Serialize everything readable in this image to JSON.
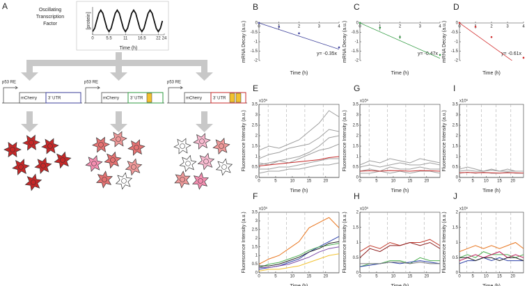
{
  "panel_a": {
    "label": "A",
    "factor_label": [
      "Oscillating",
      "Transcription",
      "Factor"
    ],
    "constructs": [
      {
        "promoter": "p53 RE",
        "reporter": "mCherry",
        "utr": "3’ UTR",
        "utr_color": "#3b3f9a",
        "elements": 0
      },
      {
        "promoter": "p53 RE",
        "reporter": "mCherry",
        "utr": "3’ UTR",
        "utr_color": "#2e9a3f",
        "elements": 1
      },
      {
        "promoter": "p53 RE",
        "reporter": "mCherry",
        "utr": "3’ UTR",
        "utr_color": "#c62828",
        "elements": 2
      }
    ]
  },
  "chart_data": [
    {
      "type": "line",
      "ylabel": "[protein]",
      "xlabel": "Time (h)",
      "xlim": [
        0,
        24
      ],
      "ylim": [
        -0.15,
        1.15
      ],
      "xticks": [
        0,
        5.5,
        11,
        16.5,
        22,
        24
      ],
      "x": [
        0,
        0.6875,
        1.375,
        2.0625,
        2.75,
        3.4375,
        4.125,
        4.8125,
        5.5,
        6.1875,
        6.875,
        7.5625,
        8.25,
        8.9375,
        9.625,
        10.3125,
        11,
        11.6875,
        12.375,
        13.0625,
        13.75,
        14.4375,
        15.125,
        15.8125,
        16.5,
        17.1875,
        17.875,
        18.5625,
        19.25,
        19.9375,
        20.625,
        21.3125,
        22,
        22.6875,
        23.375
      ],
      "series": [
        {
          "color": "#111111",
          "values": [
            0,
            0.15,
            0.5,
            0.85,
            1,
            0.85,
            0.5,
            0.15,
            0,
            0.15,
            0.5,
            0.85,
            1,
            0.85,
            0.5,
            0.15,
            0,
            0.15,
            0.5,
            0.85,
            1,
            0.85,
            0.5,
            0.15,
            0,
            0.15,
            0.5,
            0.85,
            1,
            0.85,
            0.5,
            0.15,
            0,
            0.15,
            0.5
          ]
        }
      ]
    },
    {
      "type": "scatter",
      "label": "B",
      "ylabel": "mRNA Decay (a.u.)",
      "xlabel": "Time (h)",
      "annotation": "y= -0.35x",
      "xlim": [
        0,
        4
      ],
      "ylim": [
        -2,
        0
      ],
      "xticks": [
        0,
        1,
        2,
        3,
        4
      ],
      "yticks": [
        0,
        -0.5,
        -1,
        -1.5,
        -2
      ],
      "x": [
        0,
        1,
        2,
        4
      ],
      "values": [
        0,
        -0.2,
        -0.55,
        -1.3
      ],
      "errors": [
        0,
        0.15,
        0.05,
        0.03
      ],
      "color": "#3b3f9a",
      "fit_slope": -0.35
    },
    {
      "type": "scatter",
      "label": "C",
      "ylabel": "mRNA Decay (a.u.)",
      "xlabel": "Time (h)",
      "annotation": "y= -0.47x",
      "xlim": [
        0,
        4
      ],
      "ylim": [
        -2,
        0
      ],
      "xticks": [
        0,
        1,
        2,
        3,
        4
      ],
      "yticks": [
        0,
        -0.5,
        -1,
        -1.5,
        -2
      ],
      "x": [
        0,
        1,
        2,
        4
      ],
      "values": [
        0,
        -0.25,
        -0.75,
        -1.7
      ],
      "errors": [
        0,
        0.15,
        0.1,
        0.05
      ],
      "color": "#2e9a3f",
      "fit_slope": -0.47
    },
    {
      "type": "scatter",
      "label": "D",
      "ylabel": "mRNA Decay (a.u.)",
      "xlabel": "Time (h)",
      "annotation": "y= -0.61x",
      "xlim": [
        0,
        4
      ],
      "ylim": [
        -2,
        0
      ],
      "xticks": [
        0,
        1,
        2,
        3,
        4
      ],
      "yticks": [
        0,
        -0.5,
        -1,
        -1.5,
        -2
      ],
      "x": [
        0,
        1,
        2,
        4
      ],
      "values": [
        0,
        -0.2,
        -0.75,
        -1.85
      ],
      "errors": [
        0,
        0.1,
        0.05,
        0.05
      ],
      "color": "#d32f2f",
      "fit_slope": -0.61
    },
    {
      "type": "line",
      "label": "E",
      "ylabel": "Fluorescence Intensity (a.u.)",
      "xlabel": "Time (h)",
      "y_exponent": "x10⁵",
      "xlim": [
        0,
        24
      ],
      "ylim": [
        0,
        3.5
      ],
      "xticks": [
        0,
        5,
        10,
        15,
        20
      ],
      "yticks": [
        0,
        0.5,
        1,
        1.5,
        2,
        2.5,
        3,
        3.5
      ],
      "period_lines": [
        2.75,
        8.25,
        13.75,
        19.25
      ],
      "x": [
        0,
        3,
        6,
        9,
        12,
        15,
        18,
        21,
        24
      ],
      "series": [
        {
          "color": "#9e9e9e",
          "values": [
            0.6,
            0.7,
            0.8,
            0.9,
            1.0,
            1.2,
            1.5,
            1.9,
            2.0
          ]
        },
        {
          "color": "#9e9e9e",
          "values": [
            0.9,
            1.1,
            1.2,
            1.4,
            1.5,
            1.6,
            1.9,
            2.3,
            2.2
          ]
        },
        {
          "color": "#9e9e9e",
          "values": [
            0.4,
            0.4,
            0.5,
            0.5,
            0.6,
            0.7,
            0.8,
            0.9,
            0.9
          ]
        },
        {
          "color": "#9e9e9e",
          "values": [
            1.3,
            1.5,
            1.4,
            1.6,
            1.8,
            2.2,
            2.6,
            3.2,
            2.9
          ]
        },
        {
          "color": "#9e9e9e",
          "values": [
            0.2,
            0.3,
            0.3,
            0.4,
            0.4,
            0.5,
            0.6,
            0.6,
            0.7
          ]
        },
        {
          "color": "#9e9e9e",
          "values": [
            0.7,
            0.6,
            0.8,
            0.7,
            0.9,
            1.1,
            1.3,
            1.4,
            1.6
          ]
        },
        {
          "color": "#c62828",
          "values": [
            0.55,
            0.6,
            0.65,
            0.7,
            0.75,
            0.8,
            0.85,
            0.95,
            1.0
          ]
        }
      ]
    },
    {
      "type": "line",
      "label": "F",
      "ylabel": "Fluorescence Intensity (a.u.)",
      "xlabel": "Time (h)",
      "y_exponent": "x10⁵",
      "xlim": [
        0,
        24
      ],
      "ylim": [
        0,
        3.5
      ],
      "xticks": [
        0,
        5,
        10,
        15,
        20
      ],
      "yticks": [
        0,
        0.5,
        1,
        1.5,
        2,
        2.5,
        3,
        3.5
      ],
      "period_lines": [
        2.75,
        8.25,
        13.75,
        19.25
      ],
      "x": [
        0,
        3,
        6,
        9,
        12,
        15,
        18,
        21,
        24
      ],
      "series": [
        {
          "color": "#e8741c",
          "values": [
            0.5,
            0.8,
            1.0,
            1.4,
            1.8,
            2.6,
            2.9,
            3.2,
            2.6
          ]
        },
        {
          "color": "#2a3ea8",
          "values": [
            0.2,
            0.3,
            0.4,
            0.6,
            0.8,
            1.2,
            1.5,
            1.8,
            2.1
          ]
        },
        {
          "color": "#4caf50",
          "values": [
            0.3,
            0.5,
            0.6,
            0.8,
            1.0,
            1.3,
            1.5,
            1.6,
            1.7
          ]
        },
        {
          "color": "#222222",
          "values": [
            0.4,
            0.4,
            0.5,
            0.7,
            0.9,
            1.2,
            1.4,
            1.7,
            1.8
          ]
        },
        {
          "color": "#f2c12e",
          "values": [
            0.1,
            0.2,
            0.2,
            0.3,
            0.4,
            0.6,
            0.8,
            1.0,
            1.1
          ]
        },
        {
          "color": "#7b4aa6",
          "values": [
            0.3,
            0.3,
            0.4,
            0.5,
            0.7,
            0.9,
            1.2,
            1.4,
            1.5
          ]
        }
      ]
    },
    {
      "type": "line",
      "label": "G",
      "ylabel": "Fluorescence Intensity (a.u.)",
      "xlabel": "Time (h)",
      "y_exponent": "x10⁵",
      "xlim": [
        0,
        24
      ],
      "ylim": [
        0,
        3.5
      ],
      "xticks": [
        0,
        5,
        10,
        15,
        20
      ],
      "yticks": [
        0,
        0.5,
        1,
        1.5,
        2,
        2.5,
        3,
        3.5
      ],
      "period_lines": [
        2.75,
        8.25,
        13.75,
        19.25
      ],
      "x": [
        0,
        3,
        6,
        9,
        12,
        15,
        18,
        21,
        24
      ],
      "series": [
        {
          "color": "#9e9e9e",
          "values": [
            0.6,
            0.8,
            0.7,
            0.9,
            0.8,
            0.7,
            0.9,
            0.8,
            0.7
          ]
        },
        {
          "color": "#9e9e9e",
          "values": [
            0.3,
            0.4,
            0.3,
            0.5,
            0.4,
            0.4,
            0.5,
            0.4,
            0.4
          ]
        },
        {
          "color": "#9e9e9e",
          "values": [
            0.5,
            0.6,
            0.5,
            0.6,
            0.7,
            0.6,
            0.6,
            0.7,
            0.6
          ]
        },
        {
          "color": "#9e9e9e",
          "values": [
            0.2,
            0.2,
            0.3,
            0.2,
            0.3,
            0.2,
            0.3,
            0.3,
            0.2
          ]
        },
        {
          "color": "#c62828",
          "values": [
            0.3,
            0.32,
            0.3,
            0.33,
            0.32,
            0.3,
            0.33,
            0.32,
            0.3
          ]
        }
      ]
    },
    {
      "type": "line",
      "label": "H",
      "ylabel": "Fluorescence Intensity (a.u.)",
      "xlabel": "Time (h)",
      "y_exponent": "x10⁵",
      "xlim": [
        0,
        24
      ],
      "ylim": [
        0,
        2
      ],
      "xticks": [
        0,
        5,
        10,
        15,
        20
      ],
      "yticks": [
        0,
        0.5,
        1,
        1.5,
        2
      ],
      "period_lines": [
        2.75,
        8.25,
        13.75,
        19.25
      ],
      "x": [
        0,
        3,
        6,
        9,
        12,
        15,
        18,
        21,
        24
      ],
      "series": [
        {
          "color": "#c0392b",
          "values": [
            0.7,
            0.9,
            0.8,
            1.0,
            0.9,
            1.0,
            1.0,
            1.1,
            0.9
          ]
        },
        {
          "color": "#8b1a1a",
          "values": [
            0.5,
            0.8,
            0.7,
            0.9,
            0.9,
            1.0,
            0.9,
            1.0,
            0.8
          ]
        },
        {
          "color": "#4caf50",
          "values": [
            0.2,
            0.3,
            0.3,
            0.4,
            0.4,
            0.3,
            0.5,
            0.4,
            0.4
          ]
        },
        {
          "color": "#2a3ea8",
          "values": [
            0.2,
            0.25,
            0.3,
            0.35,
            0.3,
            0.35,
            0.4,
            0.35,
            0.3
          ]
        },
        {
          "color": "#777777",
          "values": [
            0.3,
            0.3,
            0.3,
            0.35,
            0.35,
            0.3,
            0.35,
            0.3,
            0.3
          ]
        }
      ]
    },
    {
      "type": "line",
      "label": "I",
      "ylabel": "Fluorescence Intensity (a.u.)",
      "xlabel": "Time (h)",
      "y_exponent": "x10⁵",
      "xlim": [
        0,
        24
      ],
      "ylim": [
        0,
        3.5
      ],
      "xticks": [
        0,
        5,
        10,
        15,
        20
      ],
      "yticks": [
        0,
        0.5,
        1,
        1.5,
        2,
        2.5,
        3,
        3.5
      ],
      "period_lines": [
        2.75,
        8.25,
        13.75,
        19.25
      ],
      "x": [
        0,
        3,
        6,
        9,
        12,
        15,
        18,
        21,
        24
      ],
      "series": [
        {
          "color": "#9e9e9e",
          "values": [
            0.4,
            0.5,
            0.4,
            0.3,
            0.4,
            0.3,
            0.4,
            0.3,
            0.3
          ]
        },
        {
          "color": "#9e9e9e",
          "values": [
            0.2,
            0.25,
            0.2,
            0.25,
            0.2,
            0.2,
            0.25,
            0.2,
            0.2
          ]
        },
        {
          "color": "#9e9e9e",
          "values": [
            0.3,
            0.35,
            0.3,
            0.3,
            0.35,
            0.3,
            0.3,
            0.3,
            0.3
          ]
        },
        {
          "color": "#c62828",
          "values": [
            0.22,
            0.24,
            0.22,
            0.23,
            0.22,
            0.21,
            0.22,
            0.22,
            0.21
          ]
        }
      ]
    },
    {
      "type": "line",
      "label": "J",
      "ylabel": "Fluorescence Intensity (a.u.)",
      "xlabel": "Time (h)",
      "y_exponent": "x10⁵",
      "xlim": [
        0,
        24
      ],
      "ylim": [
        0,
        2
      ],
      "xticks": [
        0,
        5,
        10,
        15,
        20
      ],
      "yticks": [
        0,
        0.5,
        1,
        1.5,
        2
      ],
      "period_lines": [
        2.75,
        8.25,
        13.75,
        19.25
      ],
      "x": [
        0,
        3,
        6,
        9,
        12,
        15,
        18,
        21,
        24
      ],
      "series": [
        {
          "color": "#e8741c",
          "values": [
            0.7,
            0.8,
            0.9,
            0.8,
            0.9,
            0.8,
            0.9,
            1.0,
            0.8
          ]
        },
        {
          "color": "#4caf50",
          "values": [
            0.5,
            0.6,
            0.5,
            0.7,
            0.6,
            0.6,
            0.6,
            0.5,
            0.6
          ]
        },
        {
          "color": "#c2185b",
          "values": [
            0.4,
            0.5,
            0.6,
            0.5,
            0.6,
            0.7,
            0.5,
            0.6,
            0.5
          ]
        },
        {
          "color": "#2a3ea8",
          "values": [
            0.3,
            0.4,
            0.4,
            0.5,
            0.4,
            0.5,
            0.4,
            0.4,
            0.4
          ]
        },
        {
          "color": "#222222",
          "values": [
            0.5,
            0.5,
            0.4,
            0.5,
            0.5,
            0.4,
            0.5,
            0.5,
            0.4
          ]
        }
      ]
    }
  ]
}
